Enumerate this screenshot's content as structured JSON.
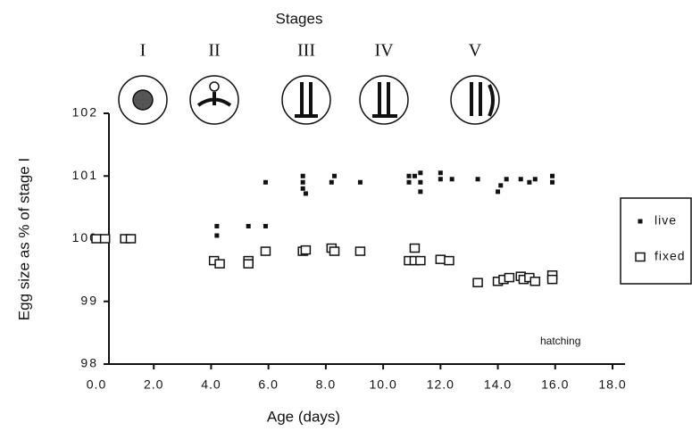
{
  "chart_data": {
    "type": "scatter",
    "title": "Stages",
    "stage_labels": [
      "I",
      "II",
      "III",
      "IV",
      "V"
    ],
    "annotation": "hatching",
    "xlabel": "Age (days)",
    "ylabel": "Egg size as % of stage I",
    "xlim": [
      0,
      18
    ],
    "ylim": [
      98,
      102
    ],
    "xticks": [
      {
        "value": 0,
        "label": "0.0"
      },
      {
        "value": 2,
        "label": "2.0"
      },
      {
        "value": 4,
        "label": "4.0"
      },
      {
        "value": 6,
        "label": "6.0"
      },
      {
        "value": 8,
        "label": "8.0"
      },
      {
        "value": 10,
        "label": "10.0"
      },
      {
        "value": 12,
        "label": "12.0"
      },
      {
        "value": 14,
        "label": "14.0"
      },
      {
        "value": 16,
        "label": "16.0"
      },
      {
        "value": 18,
        "label": "18.0"
      }
    ],
    "yticks": [
      98,
      99,
      100,
      101,
      102
    ],
    "series": [
      {
        "name": "live",
        "color": "#111111",
        "marker": "filled",
        "x": [
          4.2,
          4.2,
          5.3,
          5.9,
          5.9,
          7.2,
          7.2,
          7.2,
          7.3,
          8.2,
          8.3,
          9.2,
          10.9,
          10.9,
          11.1,
          11.3,
          11.3,
          11.3,
          12.0,
          12.0,
          12.4,
          13.3,
          14.0,
          14.1,
          14.3,
          14.8,
          15.1,
          15.3,
          15.9,
          15.9
        ],
        "values": [
          100.2,
          100.05,
          100.2,
          100.2,
          100.9,
          101.0,
          100.9,
          100.8,
          100.72,
          100.9,
          101.0,
          100.9,
          101.0,
          100.9,
          101.0,
          101.05,
          100.9,
          100.75,
          101.05,
          100.95,
          100.95,
          100.95,
          100.75,
          100.85,
          100.95,
          100.95,
          100.9,
          100.95,
          101.0,
          100.9
        ]
      },
      {
        "name": "fixed",
        "color": "#111111",
        "marker": "open",
        "x": [
          0.0,
          0.3,
          1.0,
          1.2,
          4.1,
          4.3,
          5.3,
          5.3,
          5.9,
          7.2,
          7.3,
          8.2,
          8.3,
          9.2,
          10.9,
          11.1,
          11.1,
          11.3,
          12.0,
          12.3,
          13.3,
          14.0,
          14.2,
          14.4,
          14.8,
          14.9,
          15.1,
          15.3,
          15.9,
          15.9
        ],
        "values": [
          100.0,
          100.0,
          100.0,
          100.0,
          99.65,
          99.6,
          99.65,
          99.6,
          99.8,
          99.8,
          99.82,
          99.85,
          99.8,
          99.8,
          99.65,
          99.85,
          99.65,
          99.65,
          99.67,
          99.65,
          99.3,
          99.32,
          99.35,
          99.38,
          99.4,
          99.35,
          99.38,
          99.32,
          99.42,
          99.35
        ]
      }
    ]
  }
}
